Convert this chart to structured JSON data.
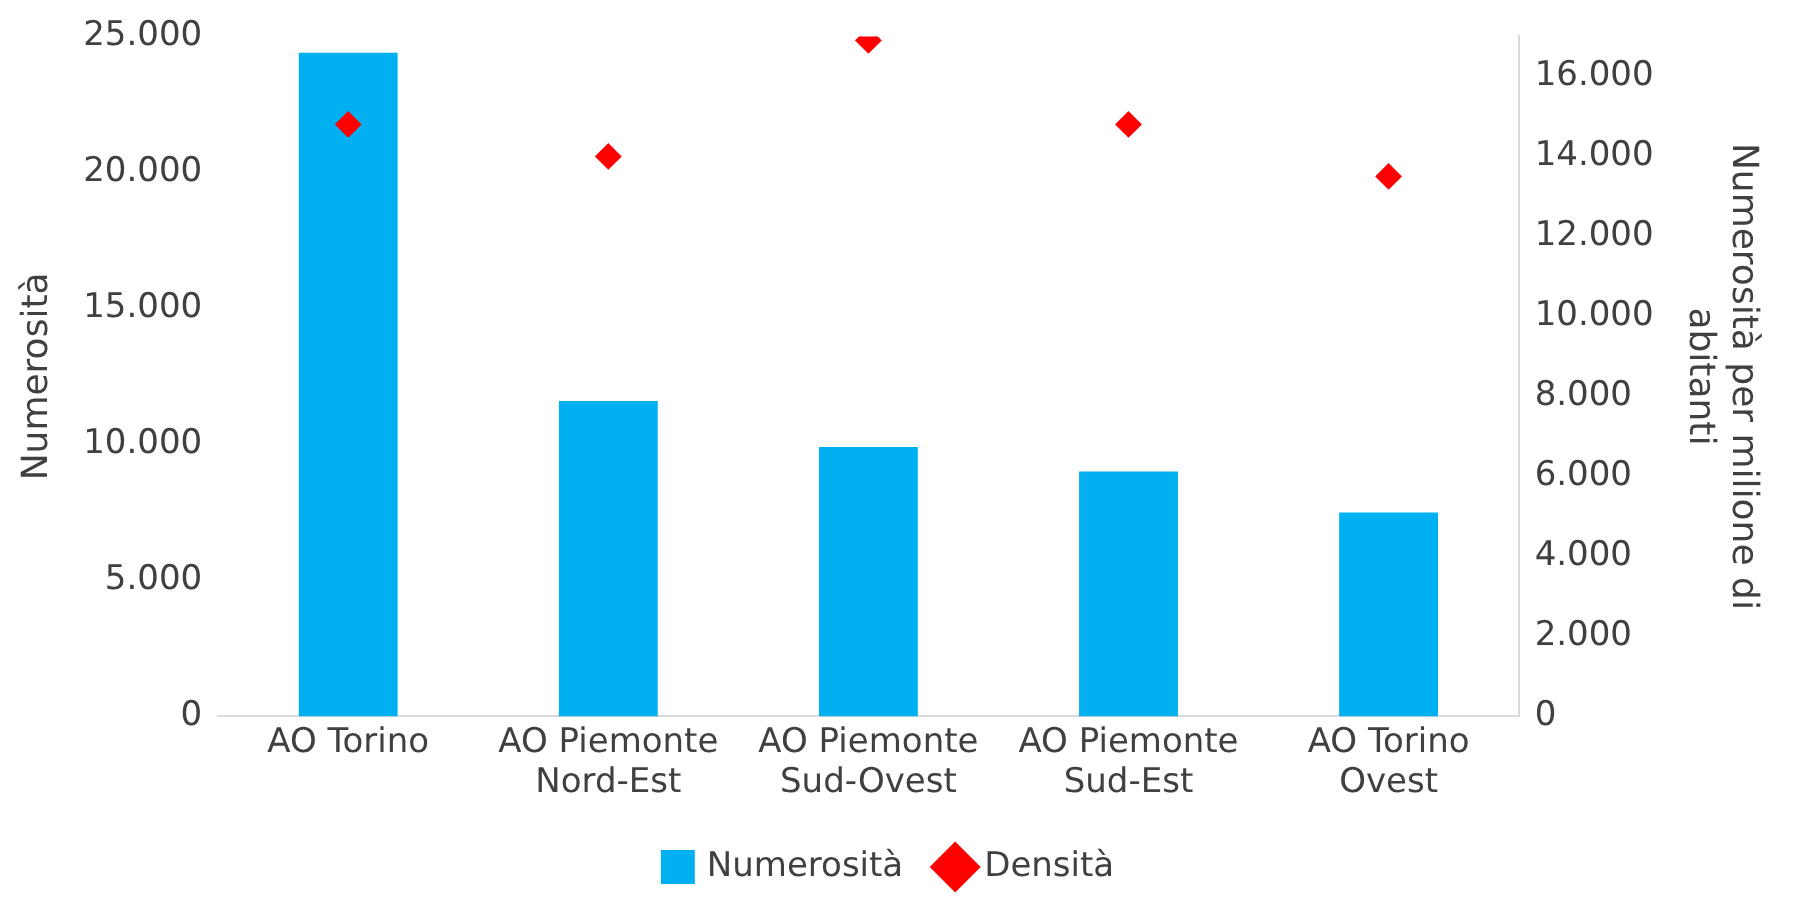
{
  "chart_data": {
    "type": "bar",
    "categories": [
      "AO Torino",
      "AO Piemonte Nord-Est",
      "AO Piemonte Sud-Ovest",
      "AO Piemonte Sud-Est",
      "AO Torino Ovest"
    ],
    "ylabel": "Numerosità",
    "y2label": "Numerosità per milione di abitanti",
    "series": [
      {
        "name": "Numerosità",
        "color": "#00b0f0",
        "values": [
          24400,
          11600,
          9900,
          9000,
          7500
        ]
      },
      {
        "name": "Densità",
        "type": "scatter",
        "axis": "y2",
        "color": "#ff0000",
        "marker": "diamond",
        "values": [
          14800,
          14000,
          16900,
          14800,
          13500
        ]
      }
    ],
    "ylim": [
      0,
      25000
    ],
    "yticks": [
      {
        "value": 0,
        "label": "0"
      },
      {
        "value": 5000,
        "label": "5.000"
      },
      {
        "value": 10000,
        "label": "10.000"
      },
      {
        "value": 15000,
        "label": "15.000"
      },
      {
        "value": 20000,
        "label": "20.000"
      },
      {
        "value": 25000,
        "label": "25.000"
      }
    ],
    "y2lim": [
      0,
      17000
    ],
    "y2ticks": [
      {
        "value": 0,
        "label": "0"
      },
      {
        "value": 2000,
        "label": "2.000"
      },
      {
        "value": 4000,
        "label": "4.000"
      },
      {
        "value": 6000,
        "label": "6.000"
      },
      {
        "value": 8000,
        "label": "8.000"
      },
      {
        "value": 10000,
        "label": "10.000"
      },
      {
        "value": 12000,
        "label": "12.000"
      },
      {
        "value": 14000,
        "label": "14.000"
      },
      {
        "value": 16000,
        "label": "16.000"
      }
    ],
    "grid": false,
    "legend": "bottom"
  }
}
